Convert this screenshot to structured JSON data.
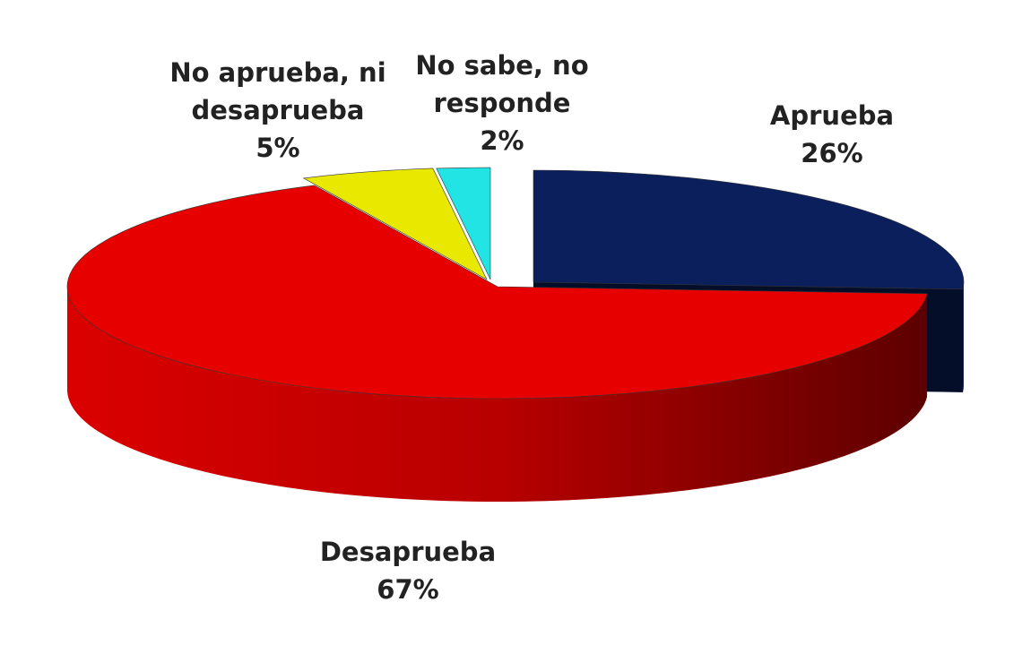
{
  "chart_data": {
    "type": "pie3d",
    "categories": [
      "Aprueba",
      "Desaprueba",
      "No aprueba, ni\ndesaprueba",
      "No sabe, no\nresponde"
    ],
    "values": [
      26,
      67,
      5,
      2
    ],
    "value_labels": [
      "26%",
      "67%",
      "5%",
      "2%"
    ],
    "colors": [
      "#0a1f5c",
      "#e60000",
      "#e8e800",
      "#22e4e4"
    ]
  }
}
